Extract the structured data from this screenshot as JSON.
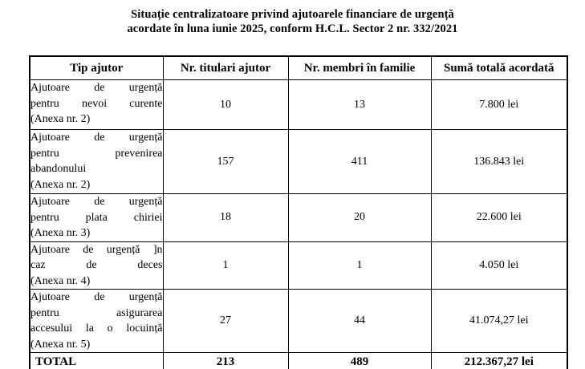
{
  "title": {
    "line1": "Situație centralizatoare privind ajutoarele financiare de urgență",
    "line2": "acordate în luna iunie 2025, conform H.C.L. Sector 2 nr. 332/2021"
  },
  "table": {
    "headers": [
      "Tip ajutor",
      "Nr. titulari ajutor",
      "Nr. membri în familie",
      "Sumă totală acordată"
    ],
    "rows": [
      {
        "tip_lines": [
          "Ajutoare de urgență",
          "pentru nevoi curente",
          "(Anexa nr. 2)"
        ],
        "titulari": "10",
        "membri": "13",
        "suma": "7.800 lei"
      },
      {
        "tip_lines": [
          "Ajutoare de urgență",
          "pentru prevenirea",
          "abandonului",
          "(Anexa nr. 2)"
        ],
        "titulari": "157",
        "membri": "411",
        "suma": "136.843 lei"
      },
      {
        "tip_lines": [
          "Ajutoare de urgență",
          "pentru plata chiriei",
          "(Anexa nr. 3)"
        ],
        "titulari": "18",
        "membri": "20",
        "suma": "22.600 lei"
      },
      {
        "tip_lines": [
          "Ajutoare de urgență ]n",
          "caz de deces",
          "(Anexa nr. 4)"
        ],
        "titulari": "1",
        "membri": "1",
        "suma": "4.050 lei"
      },
      {
        "tip_lines": [
          "Ajutoare de urgență",
          "pentru asigurarea",
          "accesului la o locuință",
          "(Anexa nr. 5)"
        ],
        "titulari": "27",
        "membri": "44",
        "suma": "41.074,27 lei"
      }
    ],
    "total": {
      "label": "TOTAL",
      "titulari": "213",
      "membri": "489",
      "suma": "212.367,27 lei"
    }
  }
}
